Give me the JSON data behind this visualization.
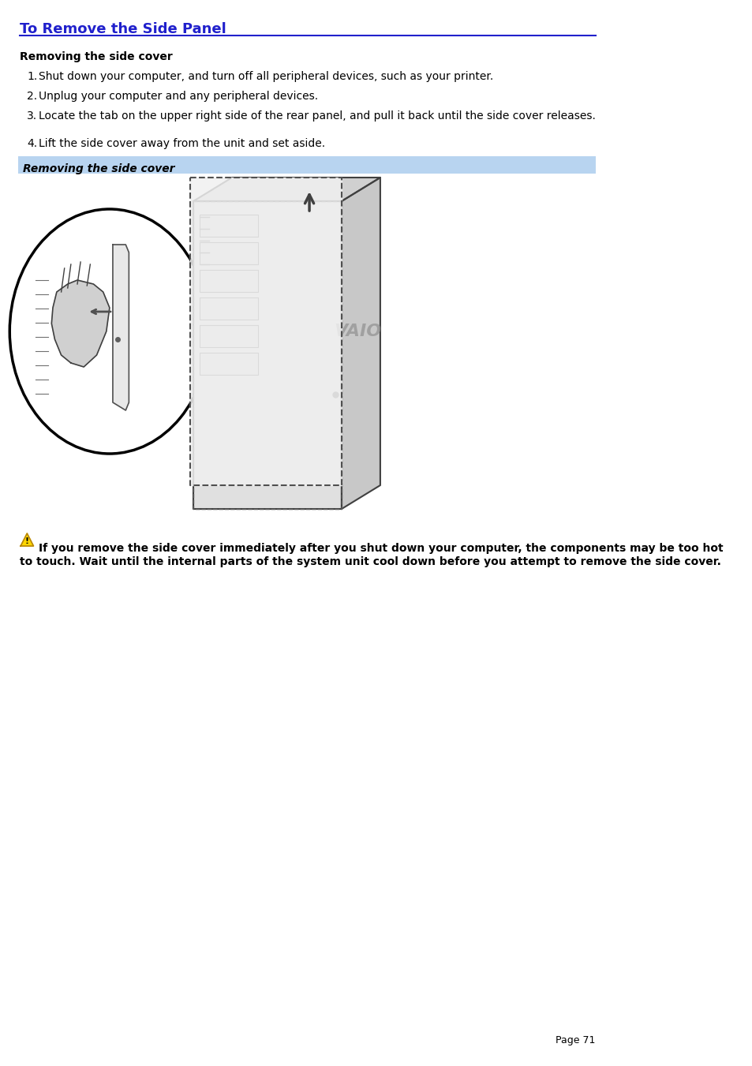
{
  "title": "To Remove the Side Panel",
  "title_color": "#2020cc",
  "title_underline_color": "#2020cc",
  "section_heading": "Removing the side cover",
  "steps": [
    "Shut down your computer, and turn off all peripheral devices, such as your printer.",
    "Unplug your computer and any peripheral devices.",
    "Locate the tab on the upper right side of the rear panel, and pull it back until the side cover releases.",
    "Lift the side cover away from the unit and set aside."
  ],
  "caption_text": "Removing the side cover",
  "caption_bg": "#b8d4f0",
  "warning_text": "If you remove the side cover immediately after you shut down your computer, the components may be too hot\nto touch. Wait until the internal parts of the system unit cool down before you attempt to remove the side cover.",
  "page_number": "Page 71",
  "bg_color": "#ffffff",
  "text_color": "#000000",
  "font_size_title": 13,
  "font_size_body": 10,
  "font_size_page": 9
}
